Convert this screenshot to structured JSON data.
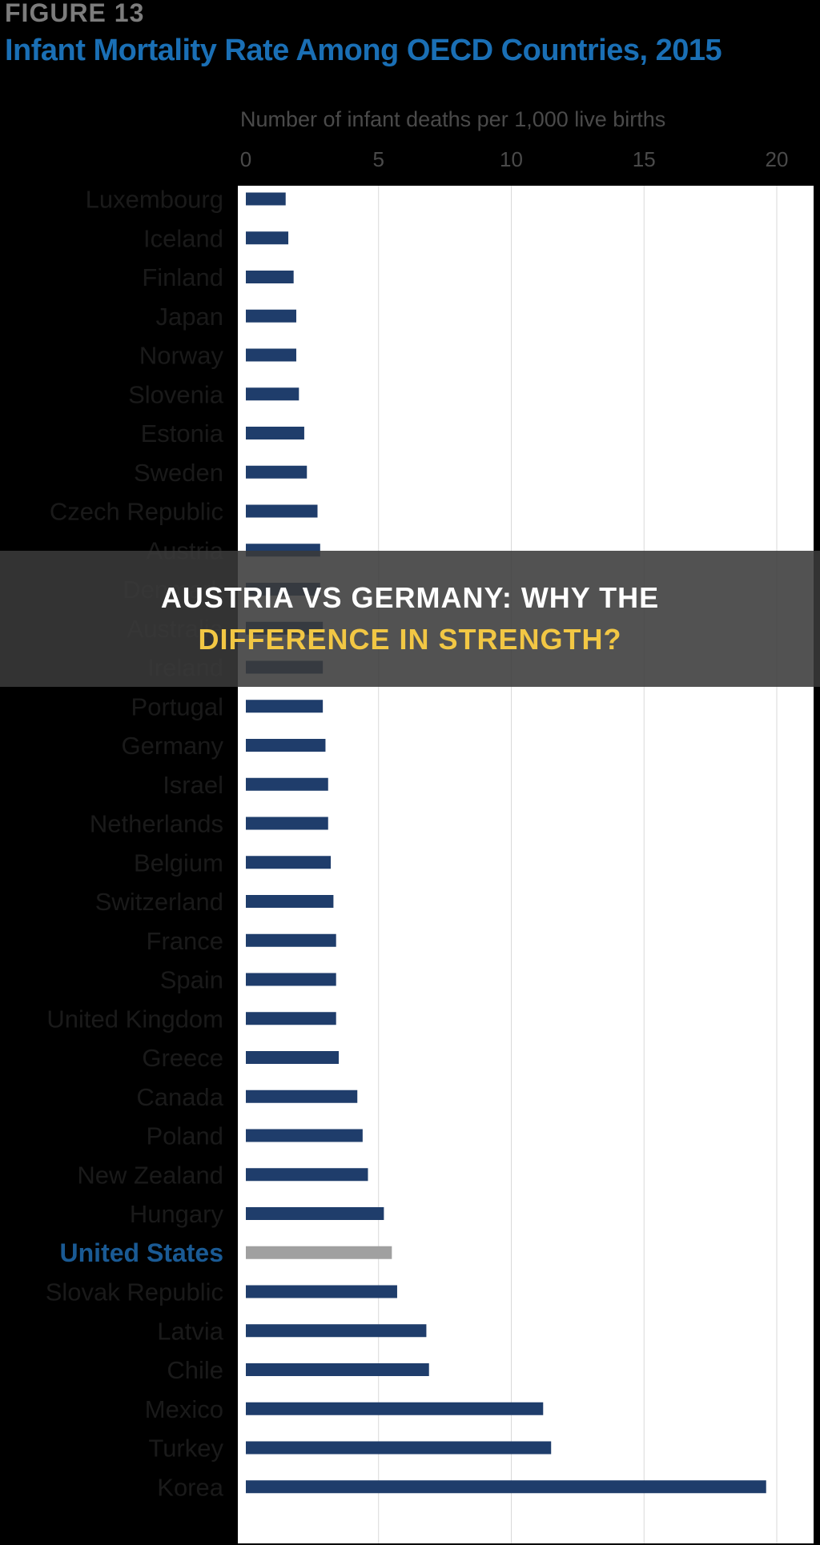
{
  "figure_label": "FIGURE 13",
  "banner": {
    "line1": "AUSTRIA VS GERMANY: WHY THE",
    "line2": "DIFFERENCE IN STRENGTH?"
  },
  "colors": {
    "bar": "#1f3d6b",
    "highlight_bar": "#a0a0a0",
    "title": "#1a6fb5",
    "highlight_label": "#1a5a94"
  },
  "chart_data": {
    "type": "bar",
    "orientation": "horizontal",
    "title": "Infant Mortality Rate Among OECD Countries, 2015",
    "xlabel": "Number of infant deaths per 1,000 live births",
    "xlim": [
      0,
      20
    ],
    "xticks": [
      "0",
      "5",
      "10",
      "15",
      "20"
    ],
    "grid": true,
    "highlight": "United States",
    "categories": [
      "Luxembourg",
      "Iceland",
      "Finland",
      "Japan",
      "Norway",
      "Slovenia",
      "Estonia",
      "Sweden",
      "Czech Republic",
      "Austria",
      "Denmark",
      "Australia",
      "Ireland",
      "Portugal",
      "Germany",
      "Israel",
      "Netherlands",
      "Belgium",
      "Switzerland",
      "France",
      "Spain",
      "United Kingdom",
      "Greece",
      "Canada",
      "Poland",
      "New Zealand",
      "Hungary",
      "United States",
      "Slovak Republic",
      "Latvia",
      "Chile",
      "Mexico",
      "Turkey",
      "Korea"
    ],
    "values": [
      1.5,
      1.6,
      1.8,
      1.9,
      1.9,
      2.0,
      2.2,
      2.3,
      2.7,
      2.8,
      2.8,
      2.9,
      2.9,
      2.9,
      3.0,
      3.1,
      3.1,
      3.2,
      3.3,
      3.4,
      3.4,
      3.4,
      3.5,
      4.2,
      4.4,
      4.6,
      5.2,
      5.5,
      5.7,
      6.8,
      6.9,
      11.2,
      11.5,
      19.6
    ]
  }
}
